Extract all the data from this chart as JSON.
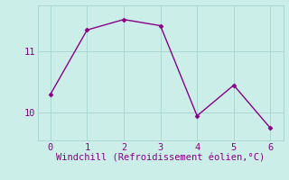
{
  "x": [
    0,
    1,
    2,
    3,
    4,
    5,
    6
  ],
  "y": [
    10.3,
    11.35,
    11.52,
    11.42,
    9.95,
    10.45,
    9.75
  ],
  "line_color": "#880088",
  "marker": "D",
  "marker_size": 2.5,
  "xlabel": "Windchill (Refroidissement éolien,°C)",
  "background_color": "#cceee8",
  "grid_color": "#aad8d0",
  "yticks": [
    10,
    11
  ],
  "xticks": [
    0,
    1,
    2,
    3,
    4,
    5,
    6
  ],
  "ylim": [
    9.55,
    11.75
  ],
  "xlim": [
    -0.35,
    6.35
  ],
  "xlabel_fontsize": 7.5,
  "tick_fontsize": 7.5,
  "label_color": "#880088",
  "linewidth": 1.0
}
